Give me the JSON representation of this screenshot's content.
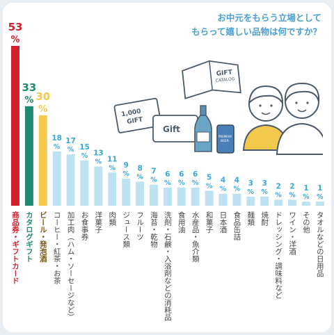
{
  "title_lines": [
    "お中元をもらう立場として",
    "もらって嬉しい品物は何ですか？"
  ],
  "illustration": {
    "ticket_label": "1,000\nGIFT",
    "gift_card_label": "Gift",
    "catalog_label_1": "GIFT",
    "catalog_label_2": "CATALOG",
    "can_label_1": "PREMIUM",
    "can_label_2": "BEER"
  },
  "colors": {
    "red": "#d2202f",
    "green": "#1f8a6f",
    "yellow": "#f2c94c",
    "blue": "#3aa7d9",
    "light_blue": "#bfe2f3",
    "title": "#4a9fd1"
  },
  "chart_data": {
    "type": "bar",
    "unit": "%",
    "ylim": [
      0,
      53
    ],
    "categories": [
      "商品券・ギフトカード",
      "カタログギフト",
      "ビール・発泡酒",
      "コーヒー・紅茶・お茶",
      "加工肉（ハム・ソーセージなど）",
      "お食事券",
      "洋菓子",
      "肉類",
      "ジュース類",
      "フルーツ",
      "海苔・乾物",
      "洗剤・石鹸・入浴剤などの消耗品",
      "食用油",
      "水産品・魚介類",
      "和菓子",
      "日本酒",
      "食品缶詰",
      "麺類",
      "焼酎",
      "ドレッシング・調味料など",
      "ワイン・洋酒",
      "その他",
      "タオルなどの日用品"
    ],
    "values": [
      53,
      33,
      30,
      18,
      17,
      15,
      13,
      11,
      9,
      8,
      7,
      6,
      6,
      6,
      5,
      4,
      4,
      3,
      3,
      2,
      2,
      1,
      1
    ]
  }
}
